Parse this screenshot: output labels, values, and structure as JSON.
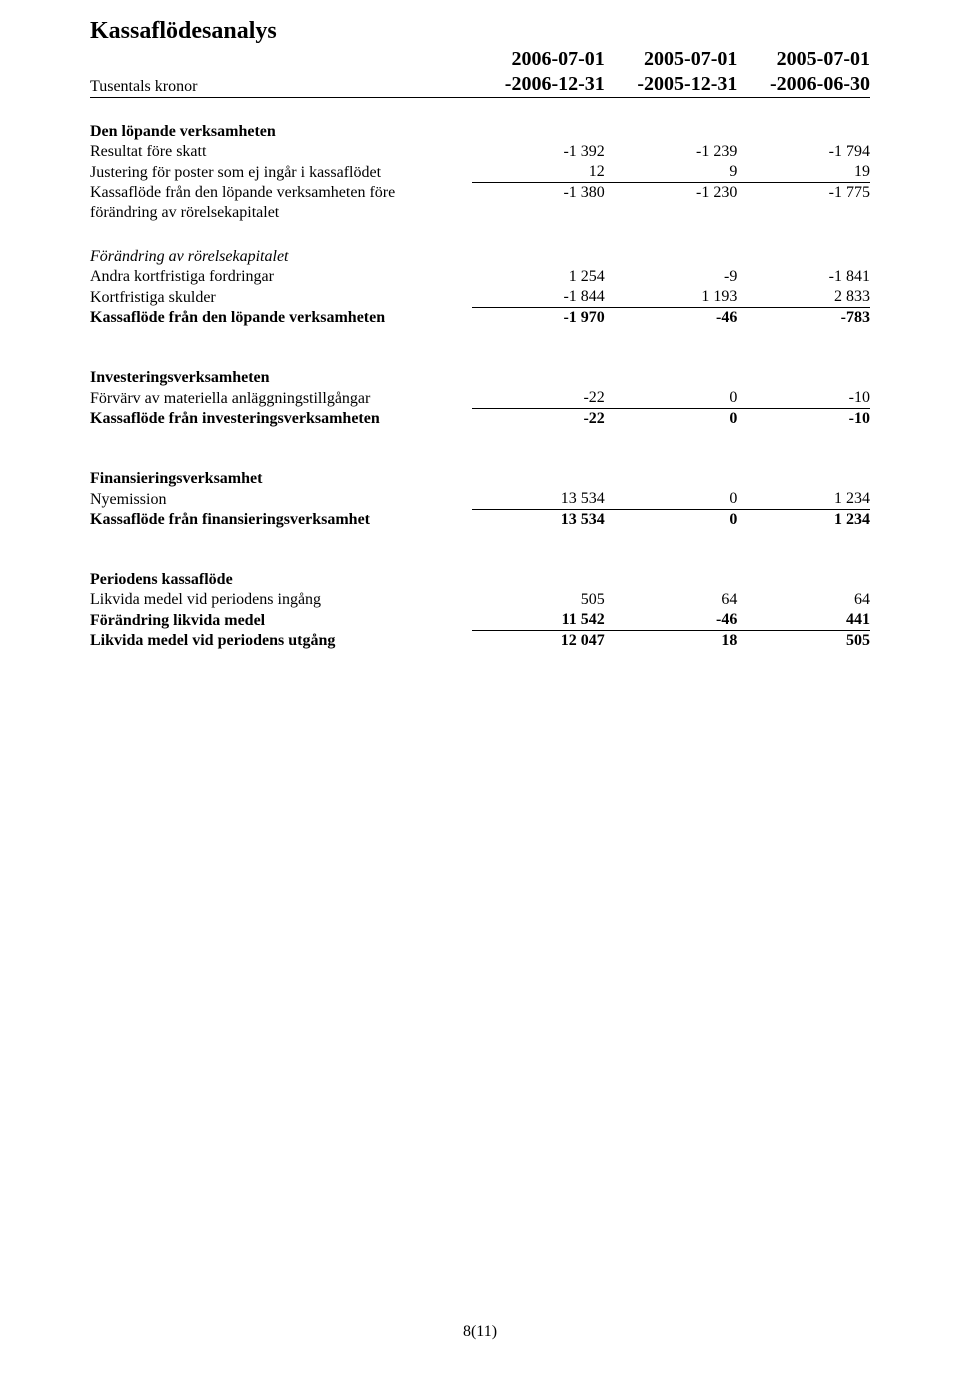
{
  "title": "Kassaflödesanalys",
  "header": {
    "col1_top": "2006-07-01",
    "col1_bot": "-2006-12-31",
    "col2_top": "2005-07-01",
    "col2_bot": "-2005-12-31",
    "col3_top": "2005-07-01",
    "col3_bot": "-2006-06-30",
    "row_label": "Tusentals kronor"
  },
  "s1": {
    "heading": "Den löpande verksamheten",
    "r1": {
      "label": "Resultat före skatt",
      "v1": "-1 392",
      "v2": "-1 239",
      "v3": "-1 794"
    },
    "r2": {
      "label": "Justering för poster som ej ingår i kassaflödet",
      "v1": "12",
      "v2": "9",
      "v3": "19"
    },
    "r3": {
      "label": "Kassaflöde från den löpande verksamheten före",
      "v1": "-1 380",
      "v2": "-1 230",
      "v3": "-1 775"
    },
    "r4": {
      "label": "förändring av rörelsekapitalet"
    }
  },
  "s2": {
    "heading": "Förändring av rörelsekapitalet",
    "r1": {
      "label": "Andra kortfristiga fordringar",
      "v1": "1 254",
      "v2": "-9",
      "v3": "-1 841"
    },
    "r2": {
      "label": "Kortfristiga skulder",
      "v1": "-1 844",
      "v2": "1 193",
      "v3": "2 833"
    },
    "r3": {
      "label": "Kassaflöde från den löpande verksamheten",
      "v1": "-1 970",
      "v2": "-46",
      "v3": "-783"
    }
  },
  "s3": {
    "heading": "Investeringsverksamheten",
    "r1": {
      "label": "Förvärv av materiella anläggningstillgångar",
      "v1": "-22",
      "v2": "0",
      "v3": "-10"
    },
    "r2": {
      "label": "Kassaflöde från investeringsverksamheten",
      "v1": "-22",
      "v2": "0",
      "v3": "-10"
    }
  },
  "s4": {
    "heading": "Finansieringsverksamhet",
    "r1": {
      "label": "Nyemission",
      "v1": "13 534",
      "v2": "0",
      "v3": "1 234"
    },
    "r2": {
      "label": "Kassaflöde från finansieringsverksamhet",
      "v1": "13 534",
      "v2": "0",
      "v3": "1 234"
    }
  },
  "s5": {
    "heading": "Periodens kassaflöde",
    "r1": {
      "label": "Likvida medel vid periodens ingång",
      "v1": "505",
      "v2": "64",
      "v3": "64"
    },
    "r2": {
      "label": "Förändring likvida medel",
      "v1": "11 542",
      "v2": "-46",
      "v3": "441"
    },
    "r3": {
      "label": "Likvida medel vid periodens utgång",
      "v1": "12 047",
      "v2": "18",
      "v3": "505"
    }
  },
  "footer": "8(11)"
}
